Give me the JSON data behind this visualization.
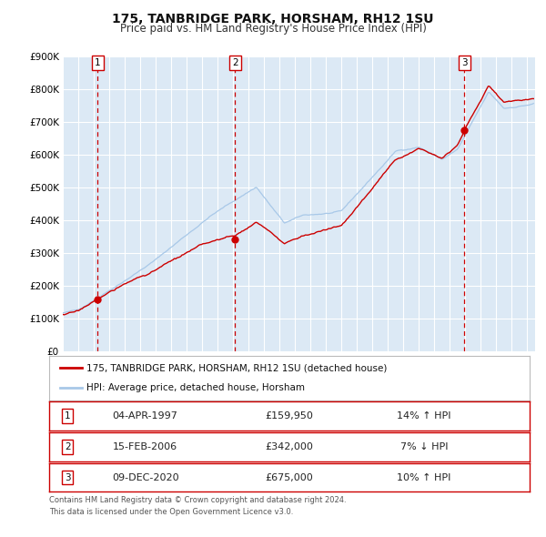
{
  "title": "175, TANBRIDGE PARK, HORSHAM, RH12 1SU",
  "subtitle": "Price paid vs. HM Land Registry's House Price Index (HPI)",
  "background_color": "#ffffff",
  "plot_bg_color": "#dce9f5",
  "grid_color": "#ffffff",
  "ylim": [
    0,
    900000
  ],
  "yticks": [
    0,
    100000,
    200000,
    300000,
    400000,
    500000,
    600000,
    700000,
    800000,
    900000
  ],
  "ytick_labels": [
    "£0",
    "£100K",
    "£200K",
    "£300K",
    "£400K",
    "£500K",
    "£600K",
    "£700K",
    "£800K",
    "£900K"
  ],
  "xlim_start": 1995.0,
  "xlim_end": 2025.5,
  "xticks": [
    1995,
    1996,
    1997,
    1998,
    1999,
    2000,
    2001,
    2002,
    2003,
    2004,
    2005,
    2006,
    2007,
    2008,
    2009,
    2010,
    2011,
    2012,
    2013,
    2014,
    2015,
    2016,
    2017,
    2018,
    2019,
    2020,
    2021,
    2022,
    2023,
    2024,
    2025
  ],
  "sale_color": "#cc0000",
  "hpi_color": "#a8c8e8",
  "vline_color": "#cc0000",
  "marker_color": "#cc0000",
  "sale_label": "175, TANBRIDGE PARK, HORSHAM, RH12 1SU (detached house)",
  "hpi_label": "HPI: Average price, detached house, Horsham",
  "transactions": [
    {
      "num": 1,
      "date": "04-APR-1997",
      "price": 159950,
      "x": 1997.26,
      "hpi_note": "14% ↑ HPI"
    },
    {
      "num": 2,
      "date": "15-FEB-2006",
      "price": 342000,
      "x": 2006.13,
      "hpi_note": "7% ↓ HPI"
    },
    {
      "num": 3,
      "date": "09-DEC-2020",
      "price": 675000,
      "x": 2020.94,
      "hpi_note": "10% ↑ HPI"
    }
  ],
  "footnote1": "Contains HM Land Registry data © Crown copyright and database right 2024.",
  "footnote2": "This data is licensed under the Open Government Licence v3.0.",
  "legend_border_color": "#bbbbbb",
  "table_border_color": "#cc0000"
}
